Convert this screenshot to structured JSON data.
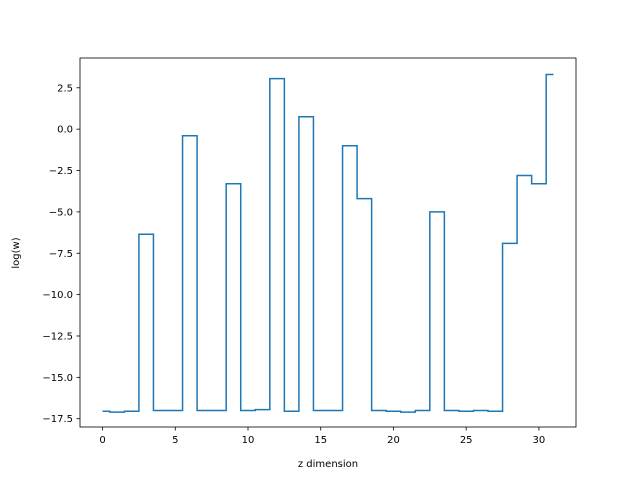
{
  "chart_data": {
    "type": "line",
    "drawstyle": "steps-mid",
    "xlabel": "z dimension",
    "ylabel": "log(w)",
    "xlim": [
      -1.55,
      32.55
    ],
    "ylim": [
      -18.0,
      4.3
    ],
    "xticks": [
      0,
      5,
      10,
      15,
      20,
      25,
      30
    ],
    "xtick_labels": [
      "0",
      "5",
      "10",
      "15",
      "20",
      "25",
      "30"
    ],
    "yticks": [
      -17.5,
      -15.0,
      -12.5,
      -10.0,
      -7.5,
      -5.0,
      -2.5,
      0.0,
      2.5
    ],
    "ytick_labels": [
      "−17.5",
      "−15.0",
      "−12.5",
      "−10.0",
      "−7.5",
      "−5.0",
      "−2.5",
      "0.0",
      "2.5"
    ],
    "grid": false,
    "color": "#1f77b4",
    "series": [
      {
        "x": [
          0,
          1,
          2,
          3,
          4,
          5,
          6,
          7,
          8,
          9,
          10,
          11,
          12,
          13,
          14,
          15,
          16,
          17,
          18,
          19,
          20,
          21,
          22,
          23,
          24,
          25,
          26,
          27,
          28,
          29,
          30,
          31
        ],
        "y": [
          -17.05,
          -17.1,
          -17.05,
          -6.35,
          -17.0,
          -17.0,
          -0.4,
          -17.0,
          -17.0,
          -3.3,
          -17.0,
          -16.95,
          3.05,
          -17.05,
          0.75,
          -17.0,
          -17.0,
          -1.0,
          -4.2,
          -17.0,
          -17.05,
          -17.1,
          -17.0,
          -5.0,
          -17.0,
          -17.05,
          -17.0,
          -17.05,
          -6.9,
          -2.8,
          -3.3,
          3.3
        ]
      }
    ]
  }
}
